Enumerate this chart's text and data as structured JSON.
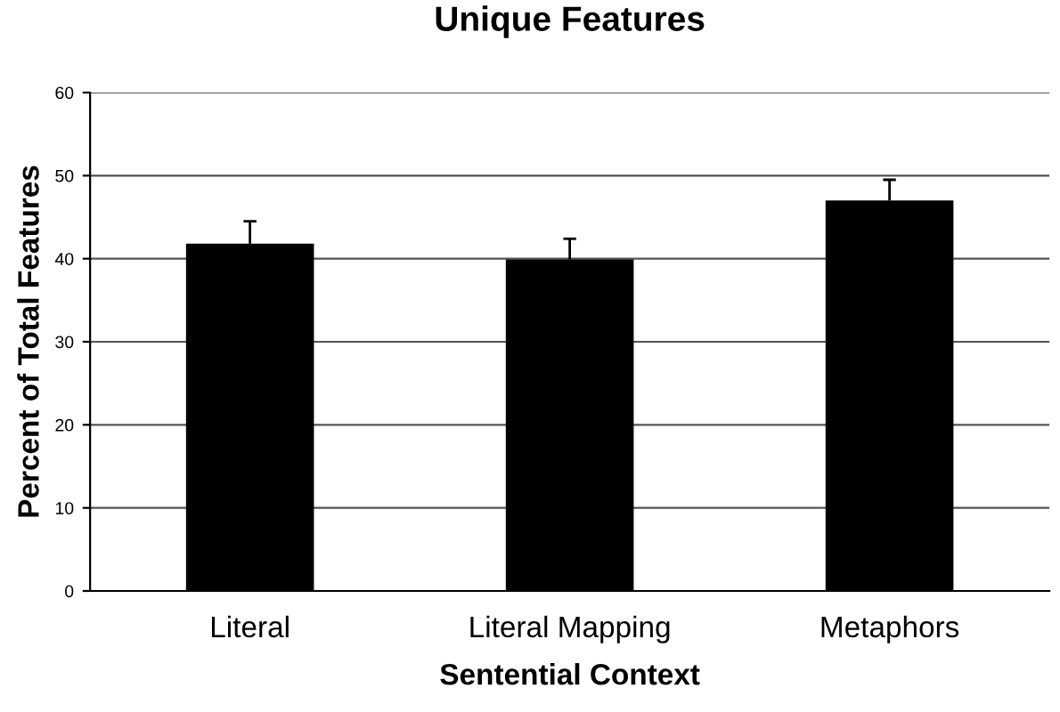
{
  "chart_data": {
    "type": "bar",
    "title": "Unique Features",
    "xlabel": "Sentential Context",
    "ylabel": "Percent of Total Features",
    "categories": [
      "Literal",
      "Literal Mapping",
      "Metaphors"
    ],
    "values": [
      41.8,
      39.9,
      47.0
    ],
    "errors": [
      [
        41.8,
        44.5
      ],
      [
        39.9,
        42.4
      ],
      [
        47.0,
        49.5
      ]
    ],
    "color": "#000000",
    "ylim": [
      0,
      60
    ],
    "yticks": [
      0,
      10,
      20,
      30,
      40,
      50,
      60
    ],
    "grid": "y"
  }
}
